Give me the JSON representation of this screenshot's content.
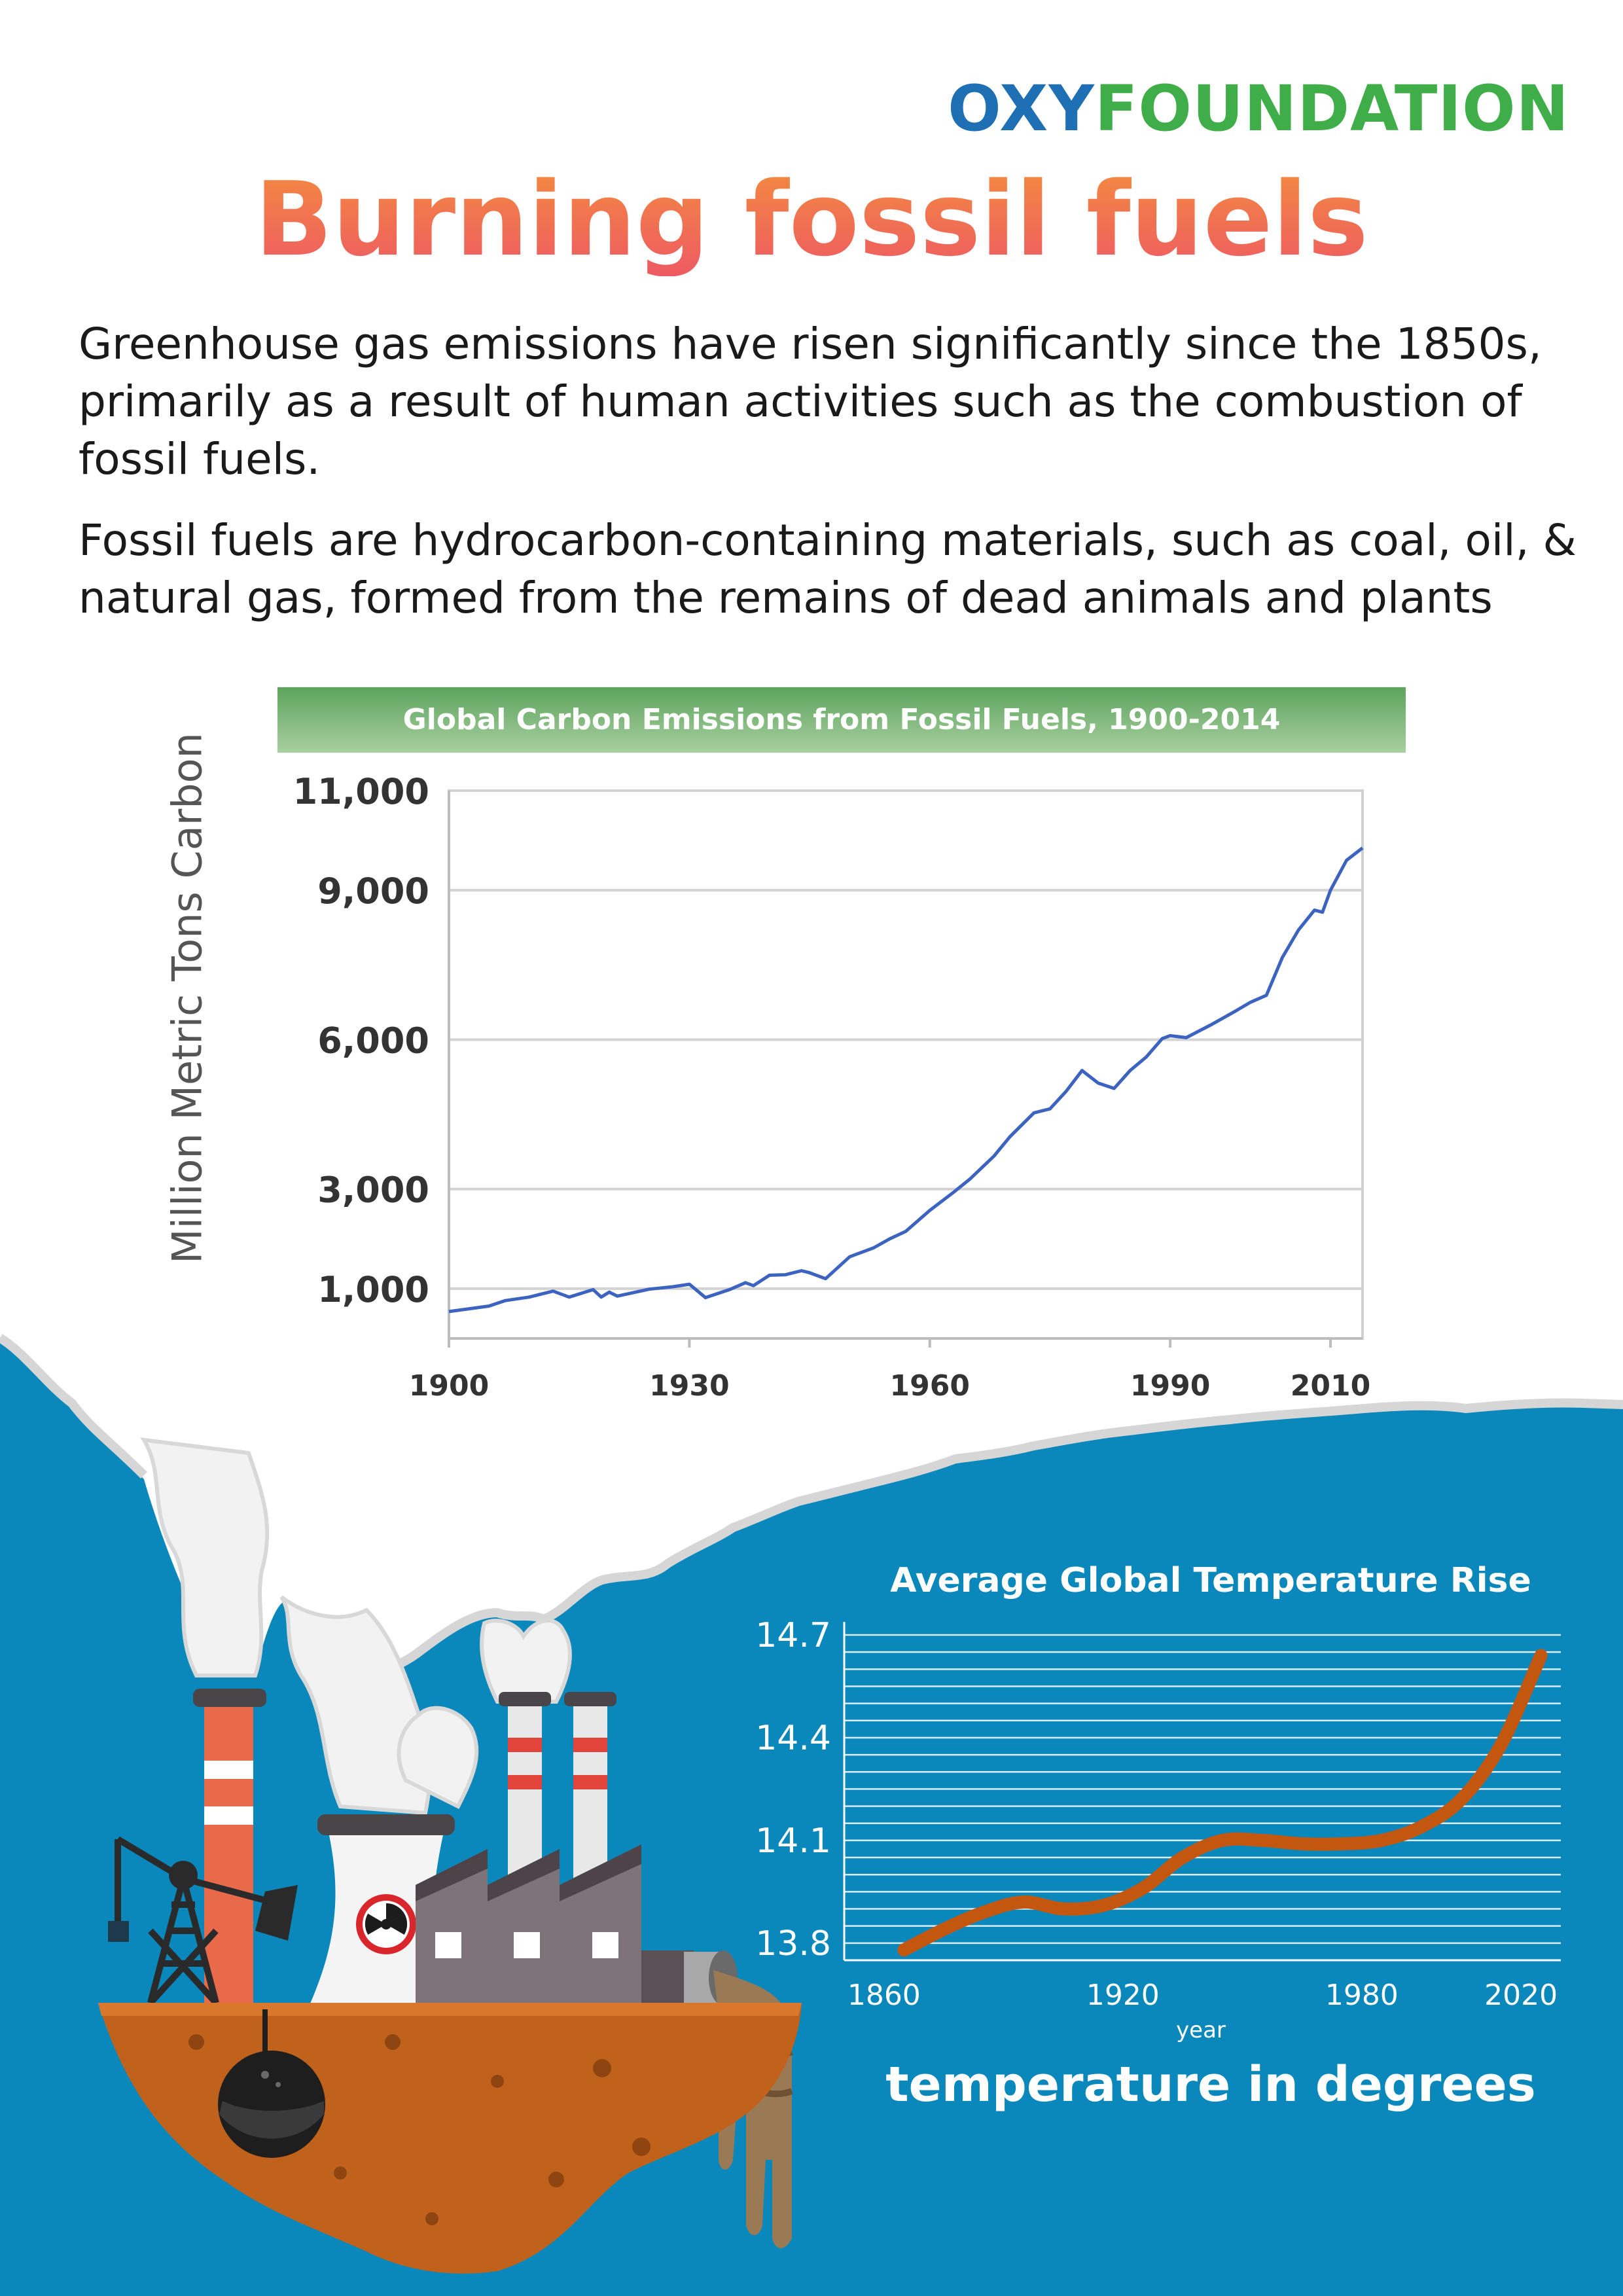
{
  "brand": {
    "part1": "OXY",
    "part2": "FOUNDATION",
    "colors": {
      "part1": "#1f6fb5",
      "part2": "#3fae49"
    }
  },
  "title": "Burning fossil fuels",
  "intro": {
    "p1": "Greenhouse gas emissions have risen significantly since the 1850s, primarily as a result of human activities such as the combustion of fossil fuels.",
    "p2": "Fossil fuels are hydrocarbon-containing materials, such as coal, oil, & natural gas, formed from the remains of dead animals and plants"
  },
  "colors": {
    "background_blue": "#0a87bb",
    "smoke": "#f2f2f2",
    "line_blue": "#3c63c0",
    "temp_line": "#c4570f",
    "title_gradient": [
      "#f38b3f",
      "#ee5a63"
    ]
  },
  "illustration": {
    "icons": [
      "factory-icon",
      "nuclear-cooling-tower-icon",
      "oil-pump-icon",
      "chimney-icon",
      "smoke-cloud-icon",
      "drain-pipe-icon",
      "radiation-symbol-icon"
    ]
  },
  "chart_data": [
    {
      "type": "line",
      "title": "Global Carbon Emissions from Fossil Fuels, 1900-2014",
      "xlabel": "",
      "ylabel": "Million Metric Tons Carbon",
      "xlim": [
        1900,
        2014
      ],
      "ylim": [
        0,
        11000
      ],
      "y_ticks": [
        1000,
        3000,
        6000,
        9000,
        11000
      ],
      "y_tick_labels": [
        "1,000",
        "3,000",
        "6,000",
        "9,000",
        "11,000"
      ],
      "x_ticks": [
        1900,
        1930,
        1960,
        1990,
        2010
      ],
      "x_tick_labels": [
        "1900",
        "1930",
        "1960",
        "1990",
        "2010"
      ],
      "grid": true,
      "legend": "none",
      "series": [
        {
          "x": [
            1900,
            1905,
            1907,
            1910,
            1913,
            1915,
            1918,
            1919,
            1920,
            1921,
            1925,
            1928,
            1930,
            1932,
            1935,
            1937,
            1938,
            1940,
            1942,
            1944,
            1945,
            1947,
            1950,
            1953,
            1955,
            1957,
            1960,
            1963,
            1965,
            1968,
            1970,
            1973,
            1975,
            1977,
            1979,
            1981,
            1983,
            1985,
            1987,
            1989,
            1990,
            1992,
            1995,
            1998,
            2000,
            2002,
            2004,
            2006,
            2008,
            2009,
            2010,
            2012,
            2014
          ],
          "y": [
            540,
            650,
            760,
            830,
            950,
            830,
            980,
            830,
            930,
            850,
            990,
            1040,
            1090,
            820,
            980,
            1120,
            1060,
            1270,
            1280,
            1360,
            1320,
            1200,
            1640,
            1820,
            2000,
            2150,
            2570,
            2940,
            3200,
            3660,
            4050,
            4530,
            4610,
            4960,
            5380,
            5130,
            5020,
            5380,
            5650,
            6020,
            6080,
            6040,
            6290,
            6560,
            6750,
            6890,
            7650,
            8200,
            8600,
            8560,
            9000,
            9600,
            9850
          ]
        }
      ]
    },
    {
      "type": "line",
      "title": "Average Global Temperature Rise",
      "xlabel": "year",
      "ylabel": "",
      "caption": "temperature in degrees",
      "xlim": [
        1850,
        2030
      ],
      "ylim": [
        13.75,
        14.7
      ],
      "y_ticks": [
        13.8,
        14.1,
        14.4,
        14.7
      ],
      "y_tick_labels": [
        "13.8",
        "14.1",
        "14.4",
        "14.7"
      ],
      "x_ticks": [
        1860,
        1920,
        1980,
        2020
      ],
      "x_tick_labels": [
        "1860",
        "1920",
        "1980",
        "2020"
      ],
      "grid": true,
      "legend": "none",
      "series": [
        {
          "x": [
            1865,
            1875,
            1885,
            1895,
            1905,
            1915,
            1925,
            1935,
            1945,
            1955,
            1965,
            1975,
            1985,
            1995,
            2005,
            2015,
            2025
          ],
          "y": [
            13.78,
            13.84,
            13.89,
            13.92,
            13.9,
            13.91,
            13.96,
            14.05,
            14.1,
            14.1,
            14.09,
            14.09,
            14.1,
            14.14,
            14.22,
            14.38,
            14.64
          ]
        }
      ]
    }
  ]
}
